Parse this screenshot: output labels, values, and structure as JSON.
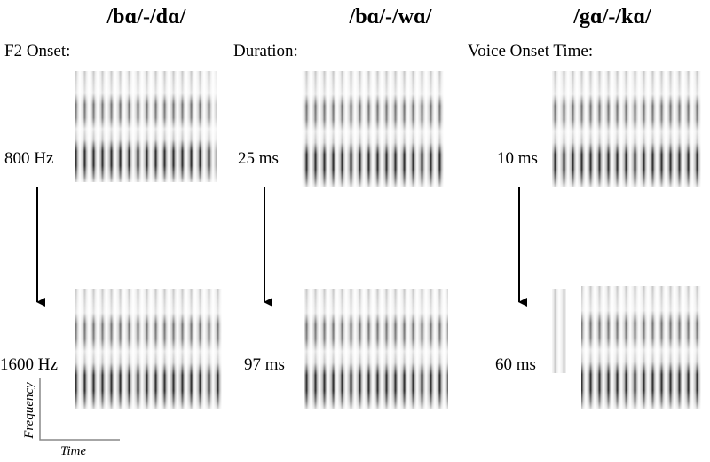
{
  "columns": [
    {
      "title": "/bɑ/-/dɑ/",
      "label": "F2 Onset:",
      "top_value": "800 Hz",
      "bottom_value": "1600 Hz"
    },
    {
      "title": "/bɑ/-/wɑ/",
      "label": "Duration:",
      "top_value": "25 ms",
      "bottom_value": "97 ms"
    },
    {
      "title": "/gɑ/-/kɑ/",
      "label": "Voice Onset Time:",
      "top_value": "10 ms",
      "bottom_value": "60 ms"
    }
  ],
  "axes": {
    "y_label": "Frequency",
    "x_label": "Time"
  }
}
